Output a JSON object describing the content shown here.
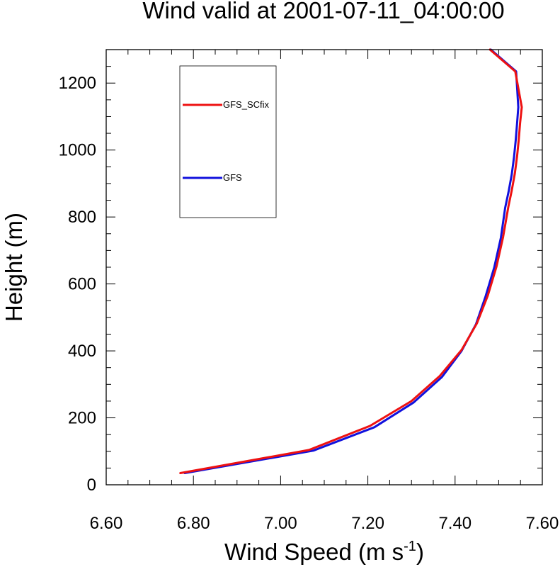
{
  "chart_data": {
    "type": "line",
    "title": "Wind valid at 2001-07-11_04:00:00",
    "xlabel": "Wind Speed (m s",
    "xlabel_sup": "-1",
    "xlabel_close": ")",
    "ylabel": "Height (m)",
    "xlim": [
      6.6,
      7.6
    ],
    "ylim": [
      0,
      1300
    ],
    "xticks": [
      "6.60",
      "6.80",
      "7.00",
      "7.20",
      "7.40",
      "7.60"
    ],
    "yticks": [
      "0",
      "200",
      "400",
      "600",
      "800",
      "1000",
      "1200"
    ],
    "legend_position": "top-left",
    "grid": false,
    "series": [
      {
        "name": "GFS_SCfix",
        "color": "#ee1111",
        "x": [
          6.77,
          7.065,
          7.205,
          7.3,
          7.365,
          7.415,
          7.45,
          7.475,
          7.495,
          7.51,
          7.522,
          7.53,
          7.537,
          7.542,
          7.546,
          7.549,
          7.553,
          7.538,
          7.48
        ],
        "y": [
          35,
          104,
          176,
          250,
          325,
          403,
          482,
          565,
          652,
          740,
          830,
          880,
          930,
          980,
          1030,
          1080,
          1128,
          1235,
          1300
        ]
      },
      {
        "name": "GFS",
        "color": "#1111dd",
        "x": [
          6.78,
          7.075,
          7.215,
          7.305,
          7.37,
          7.415,
          7.448,
          7.47,
          7.49,
          7.505,
          7.515,
          7.523,
          7.53,
          7.535,
          7.539,
          7.542,
          7.545,
          7.54,
          7.482
        ],
        "y": [
          35,
          102,
          172,
          246,
          322,
          400,
          480,
          563,
          650,
          738,
          828,
          878,
          928,
          978,
          1028,
          1078,
          1128,
          1235,
          1300
        ]
      }
    ]
  }
}
